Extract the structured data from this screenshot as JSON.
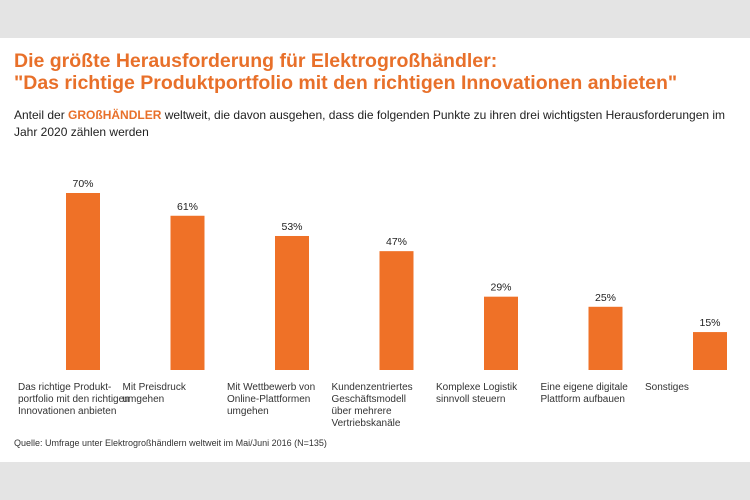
{
  "title_line1": "Die größte Herausforderung für Elektrogroßhändler:",
  "title_line2": "\"Das richtige Produktportfolio mit den richtigen Innovationen anbieten\"",
  "subtitle_pre": "Anteil der ",
  "subtitle_highlight": "GROßHÄNDLER",
  "subtitle_post": " weltweit, die davon ausgehen, dass die folgenden Punkte zu ihren drei wichtigsten Herausforderungen im Jahr 2020 zählen werden",
  "source": "Quelle:  Umfrage  unter  Elektrogroßhändlern  weltweit  im Mai/Juni 2016  (N=135)",
  "colors": {
    "accent": "#e8702a",
    "bar": "#ef7127",
    "background": "#e4e4e4"
  },
  "chart_data": {
    "type": "bar",
    "unit": "%",
    "ylim": [
      0,
      70
    ],
    "grid": false,
    "categories": [
      [
        "Das richtige Produkt-",
        "portfolio mit den richtigen",
        "Innovationen  anbieten"
      ],
      [
        "Mit Preisdruck",
        "umgehen"
      ],
      [
        "Mit Wettbewerb von",
        "Online-Plattformen",
        "umgehen"
      ],
      [
        "Kundenzentriertes",
        "Geschäftsmodell",
        "über mehrere",
        "Vertriebskanäle"
      ],
      [
        "Komplexe Logistik",
        "sinnvoll steuern"
      ],
      [
        "Eine eigene digitale",
        "Plattform aufbauen"
      ],
      [
        "Sonstiges"
      ]
    ],
    "values": [
      70,
      61,
      53,
      47,
      29,
      25,
      15
    ],
    "labels": [
      "70%",
      "61%",
      "53%",
      "47%",
      "29%",
      "25%",
      "15%"
    ]
  }
}
